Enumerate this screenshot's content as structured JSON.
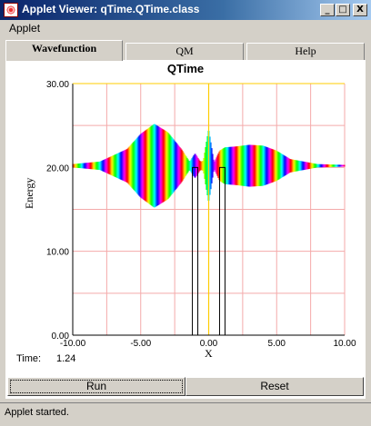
{
  "window": {
    "title": "Applet Viewer: qTime.QTime.class",
    "icon": "applet-icon",
    "controls": {
      "minimize": "_",
      "maximize": "□",
      "close": "X"
    }
  },
  "menubar": {
    "items": [
      "Applet"
    ]
  },
  "tabs": [
    {
      "label": "Wavefunction",
      "active": true
    },
    {
      "label": "QM",
      "active": false
    },
    {
      "label": "Help",
      "active": false
    }
  ],
  "chart_data": {
    "type": "line",
    "title": "QTime",
    "xlabel": "X",
    "ylabel": "Energy",
    "xlim": [
      -10,
      10
    ],
    "ylim": [
      0,
      30
    ],
    "x_ticks": [
      "-10.00",
      "-5.00",
      "0.00",
      "5.00",
      "10.00"
    ],
    "y_ticks": [
      "0.00",
      "10.00",
      "20.00",
      "30.00"
    ],
    "grid": true,
    "potential": {
      "color": "#000000",
      "x": [
        -10,
        -1.2,
        -1.2,
        -0.8,
        -0.8,
        0.8,
        0.8,
        1.2,
        1.2,
        10
      ],
      "y": [
        0,
        0,
        20,
        20,
        0,
        0,
        20,
        20,
        0,
        0
      ]
    },
    "vertical_line": {
      "x": 0,
      "color": "#ffcc00"
    },
    "wavefunction": {
      "baseline": 20.2,
      "envelope_x": [
        -10,
        -8,
        -6,
        -5,
        -4,
        -3,
        -2,
        -1.4,
        -1,
        -0.6,
        -0.4,
        0,
        0.4,
        0.8,
        1.2,
        2,
        3,
        4,
        5,
        6,
        8,
        10
      ],
      "envelope_y": [
        0.2,
        0.5,
        2.0,
        3.8,
        5.0,
        4.0,
        2.0,
        0.5,
        1.5,
        0.5,
        0.6,
        4.5,
        0.4,
        1.8,
        2.2,
        2.3,
        2.5,
        2.4,
        1.8,
        0.8,
        0.2,
        0.1
      ]
    }
  },
  "status": {
    "time_label": "Time:",
    "time_value": "1.24"
  },
  "buttons": {
    "run": "Run",
    "reset": "Reset"
  },
  "statusbar": {
    "text": "Applet started."
  }
}
